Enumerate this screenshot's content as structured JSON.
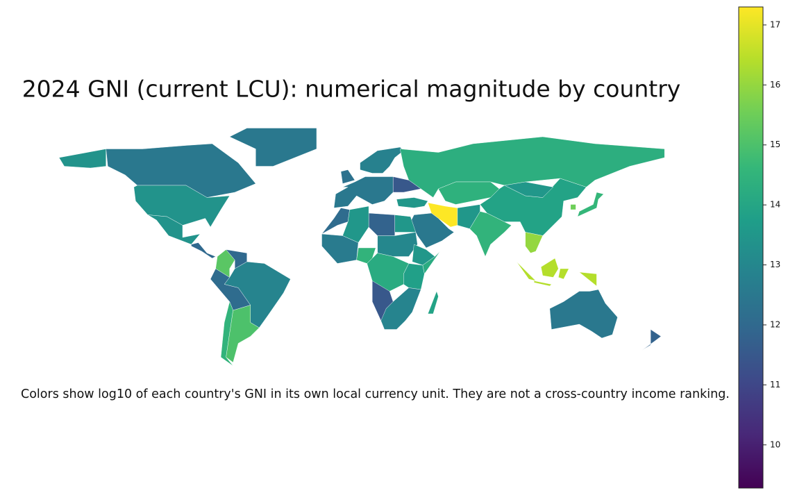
{
  "chart_data": {
    "type": "choropleth",
    "title": "2024 GNI (current LCU): numerical magnitude by country",
    "note": "Colors show log10 of each country's GNI in its own local currency unit. They are not a cross-country income ranking.",
    "colorscale": "viridis",
    "zlim": [
      9.28,
      17.3
    ],
    "zticks": [
      10,
      11,
      12,
      13,
      14,
      15,
      16,
      17
    ],
    "values": [
      12.5,
      13.4,
      12.5,
      13.4,
      12.0,
      15.2,
      12.0,
      12.9,
      12.1,
      14.5,
      15.0,
      12.5,
      12.3,
      12.8,
      14.3,
      11.5,
      13.5,
      17.3,
      12.5,
      14.4,
      13.9,
      13.5,
      14.5,
      13.5,
      16.0,
      16.4,
      14.6,
      15.5,
      12.5,
      11.8,
      11.8,
      13.5,
      12.1,
      13.5,
      12.6,
      14.5,
      13.0,
      13.5,
      14.2,
      14.2,
      13.8,
      11.5,
      12.9,
      13.9
    ]
  }
}
